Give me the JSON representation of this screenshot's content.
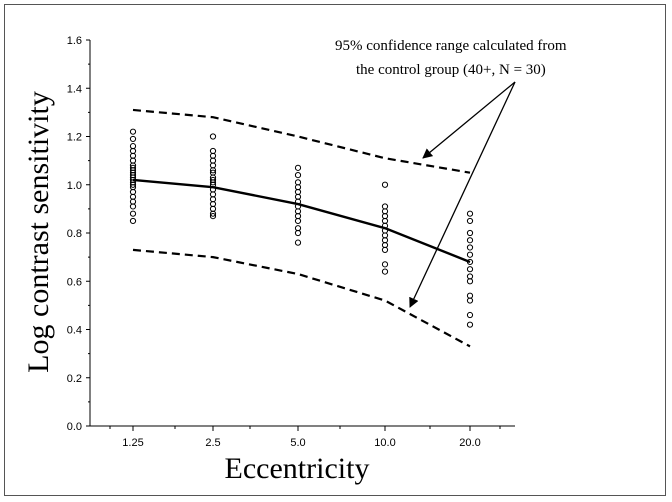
{
  "chart_data": {
    "type": "scatter",
    "xlabel": "Eccentricity",
    "ylabel": "Log contrast sensitivity",
    "categories": [
      "1.25",
      "2.5",
      "5.0",
      "10.0",
      "20.0"
    ],
    "ylim": [
      0,
      1.6
    ],
    "yticks": [
      "0.0",
      "0.2",
      "0.4",
      "0.6",
      "0.8",
      "1.0",
      "1.2",
      "1.4",
      "1.6"
    ],
    "annotation": [
      "95% confidence range calculated from",
      "the control group (40+, N = 30)"
    ],
    "series": [
      {
        "type": "scatter",
        "points": [
          [
            1.25,
            [
              0.85,
              0.88,
              0.91,
              0.93,
              0.95,
              0.97,
              0.99,
              1.0,
              1.01,
              1.02,
              1.03,
              1.04,
              1.05,
              1.06,
              1.07,
              1.08,
              1.1,
              1.12,
              1.14,
              1.16,
              1.19,
              1.22
            ]
          ],
          [
            2.5,
            [
              0.87,
              0.88,
              0.9,
              0.92,
              0.94,
              0.96,
              0.98,
              1.0,
              1.01,
              1.02,
              1.03,
              1.05,
              1.06,
              1.08,
              1.1,
              1.12,
              1.14,
              1.2
            ]
          ],
          [
            5.0,
            [
              0.76,
              0.8,
              0.82,
              0.85,
              0.87,
              0.89,
              0.91,
              0.93,
              0.95,
              0.97,
              0.99,
              1.01,
              1.04,
              1.07
            ]
          ],
          [
            10.0,
            [
              0.64,
              0.67,
              0.73,
              0.75,
              0.77,
              0.79,
              0.81,
              0.83,
              0.85,
              0.87,
              0.89,
              0.91,
              1.0
            ]
          ],
          [
            20.0,
            [
              0.42,
              0.46,
              0.52,
              0.54,
              0.6,
              0.62,
              0.65,
              0.68,
              0.71,
              0.74,
              0.77,
              0.8,
              0.85,
              0.88
            ]
          ]
        ]
      },
      {
        "type": "line",
        "style": "solid",
        "values": [
          1.02,
          0.99,
          0.92,
          0.82,
          0.68
        ]
      },
      {
        "type": "line",
        "style": "dashed",
        "values": [
          1.31,
          1.28,
          1.2,
          1.11,
          1.05
        ]
      },
      {
        "type": "line",
        "style": "dashed",
        "values": [
          0.73,
          0.7,
          0.63,
          0.52,
          0.33
        ]
      }
    ],
    "grid": false
  }
}
